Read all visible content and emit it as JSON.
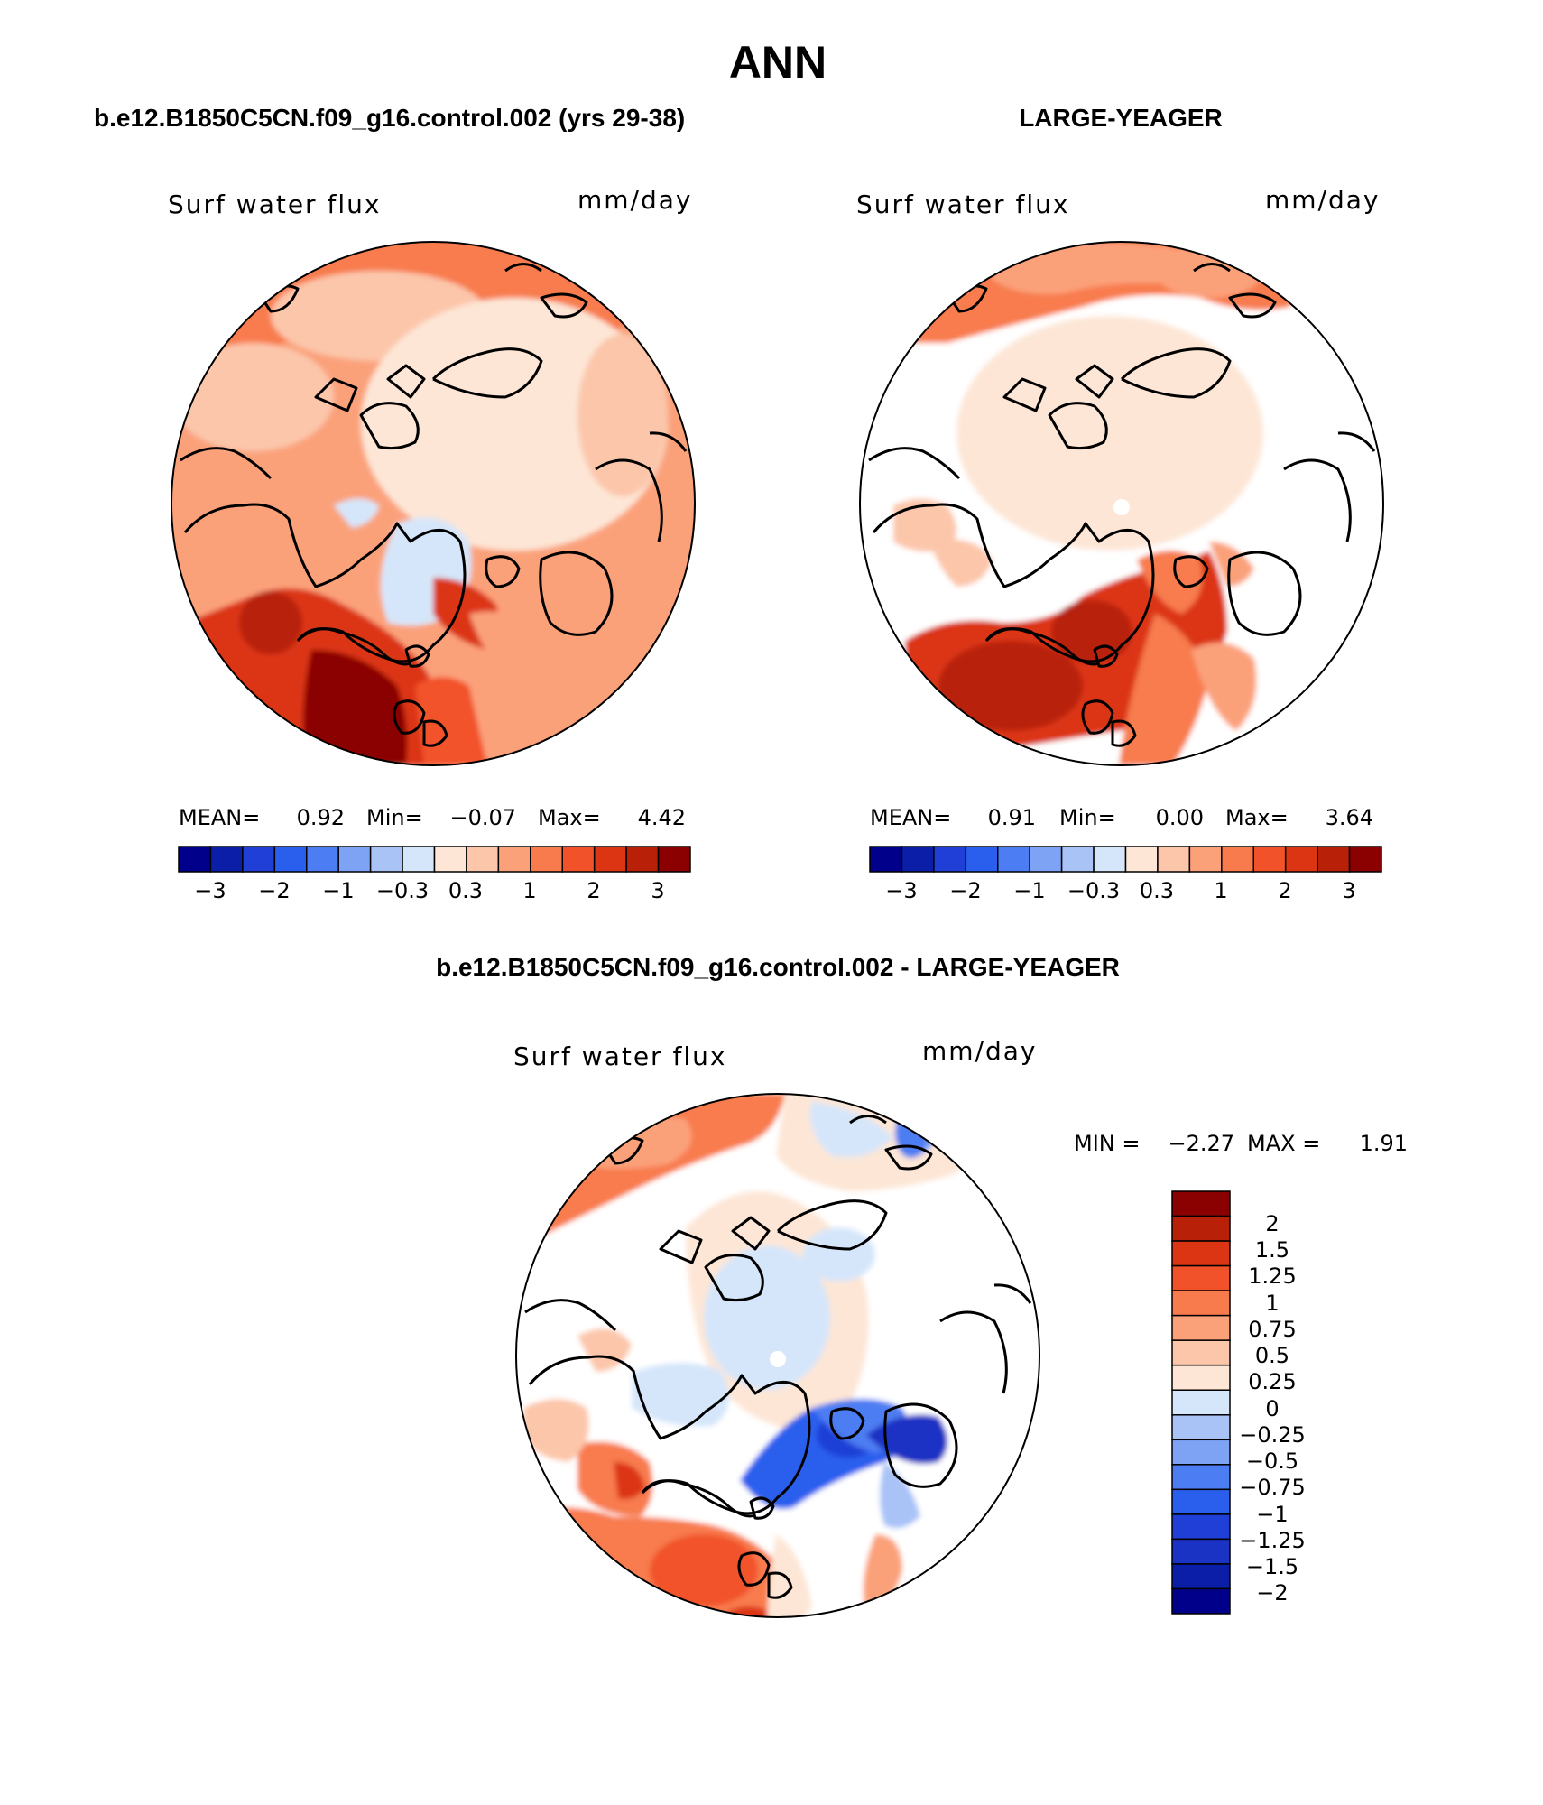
{
  "title": "ANN",
  "colors": {
    "ramp": [
      "#00008b",
      "#0a1ea8",
      "#1f3fd6",
      "#2a5fee",
      "#4d7df2",
      "#7ea3f5",
      "#a9c3f7",
      "#d6e6fa",
      "#fde6d6",
      "#fcc6aa",
      "#fba17a",
      "#f87b4e",
      "#f2522a",
      "#dc3513",
      "#b82008",
      "#8b0000"
    ],
    "diff_ramp": [
      "#00008b",
      "#0a1ea8",
      "#1a33c4",
      "#1f3fd6",
      "#2a5fee",
      "#4d7df2",
      "#7ea3f5",
      "#a9c3f7",
      "#d6e6fa",
      "#fde6d6",
      "#fcc6aa",
      "#fba17a",
      "#f87b4e",
      "#f2522a",
      "#dc3513",
      "#b82008",
      "#8b0000"
    ]
  },
  "panels": [
    {
      "heading": "b.e12.B1850C5CN.f09_g16.control.002 (yrs 29-38)",
      "field": "Surf water flux",
      "units": "mm/day",
      "stats": {
        "mean_label": "MEAN=",
        "mean": "0.92",
        "min_label": "Min=",
        "min": "−0.07",
        "max_label": "Max=",
        "max": "4.42"
      },
      "ticks": [
        "−3",
        "−2",
        "−1",
        "−0.3",
        "0.3",
        "1",
        "2",
        "3"
      ]
    },
    {
      "heading": "LARGE-YEAGER",
      "field": "Surf water flux",
      "units": "mm/day",
      "stats": {
        "mean_label": "MEAN=",
        "mean": "0.91",
        "min_label": "Min=",
        "min": "0.00",
        "max_label": "Max=",
        "max": "3.64"
      },
      "ticks": [
        "−3",
        "−2",
        "−1",
        "−0.3",
        "0.3",
        "1",
        "2",
        "3"
      ]
    }
  ],
  "difference": {
    "heading": "b.e12.B1850C5CN.f09_g16.control.002 - LARGE-YEAGER",
    "field": "Surf water flux",
    "units": "mm/day",
    "stats": {
      "min_label": "MIN =",
      "min": "−2.27",
      "max_label": "MAX =",
      "max": "1.91"
    },
    "ticks": [
      "2",
      "1.5",
      "1.25",
      "1",
      "0.75",
      "0.5",
      "0.25",
      "0",
      "−0.25",
      "−0.5",
      "−0.75",
      "−1",
      "−1.25",
      "−1.5",
      "−2"
    ]
  }
}
